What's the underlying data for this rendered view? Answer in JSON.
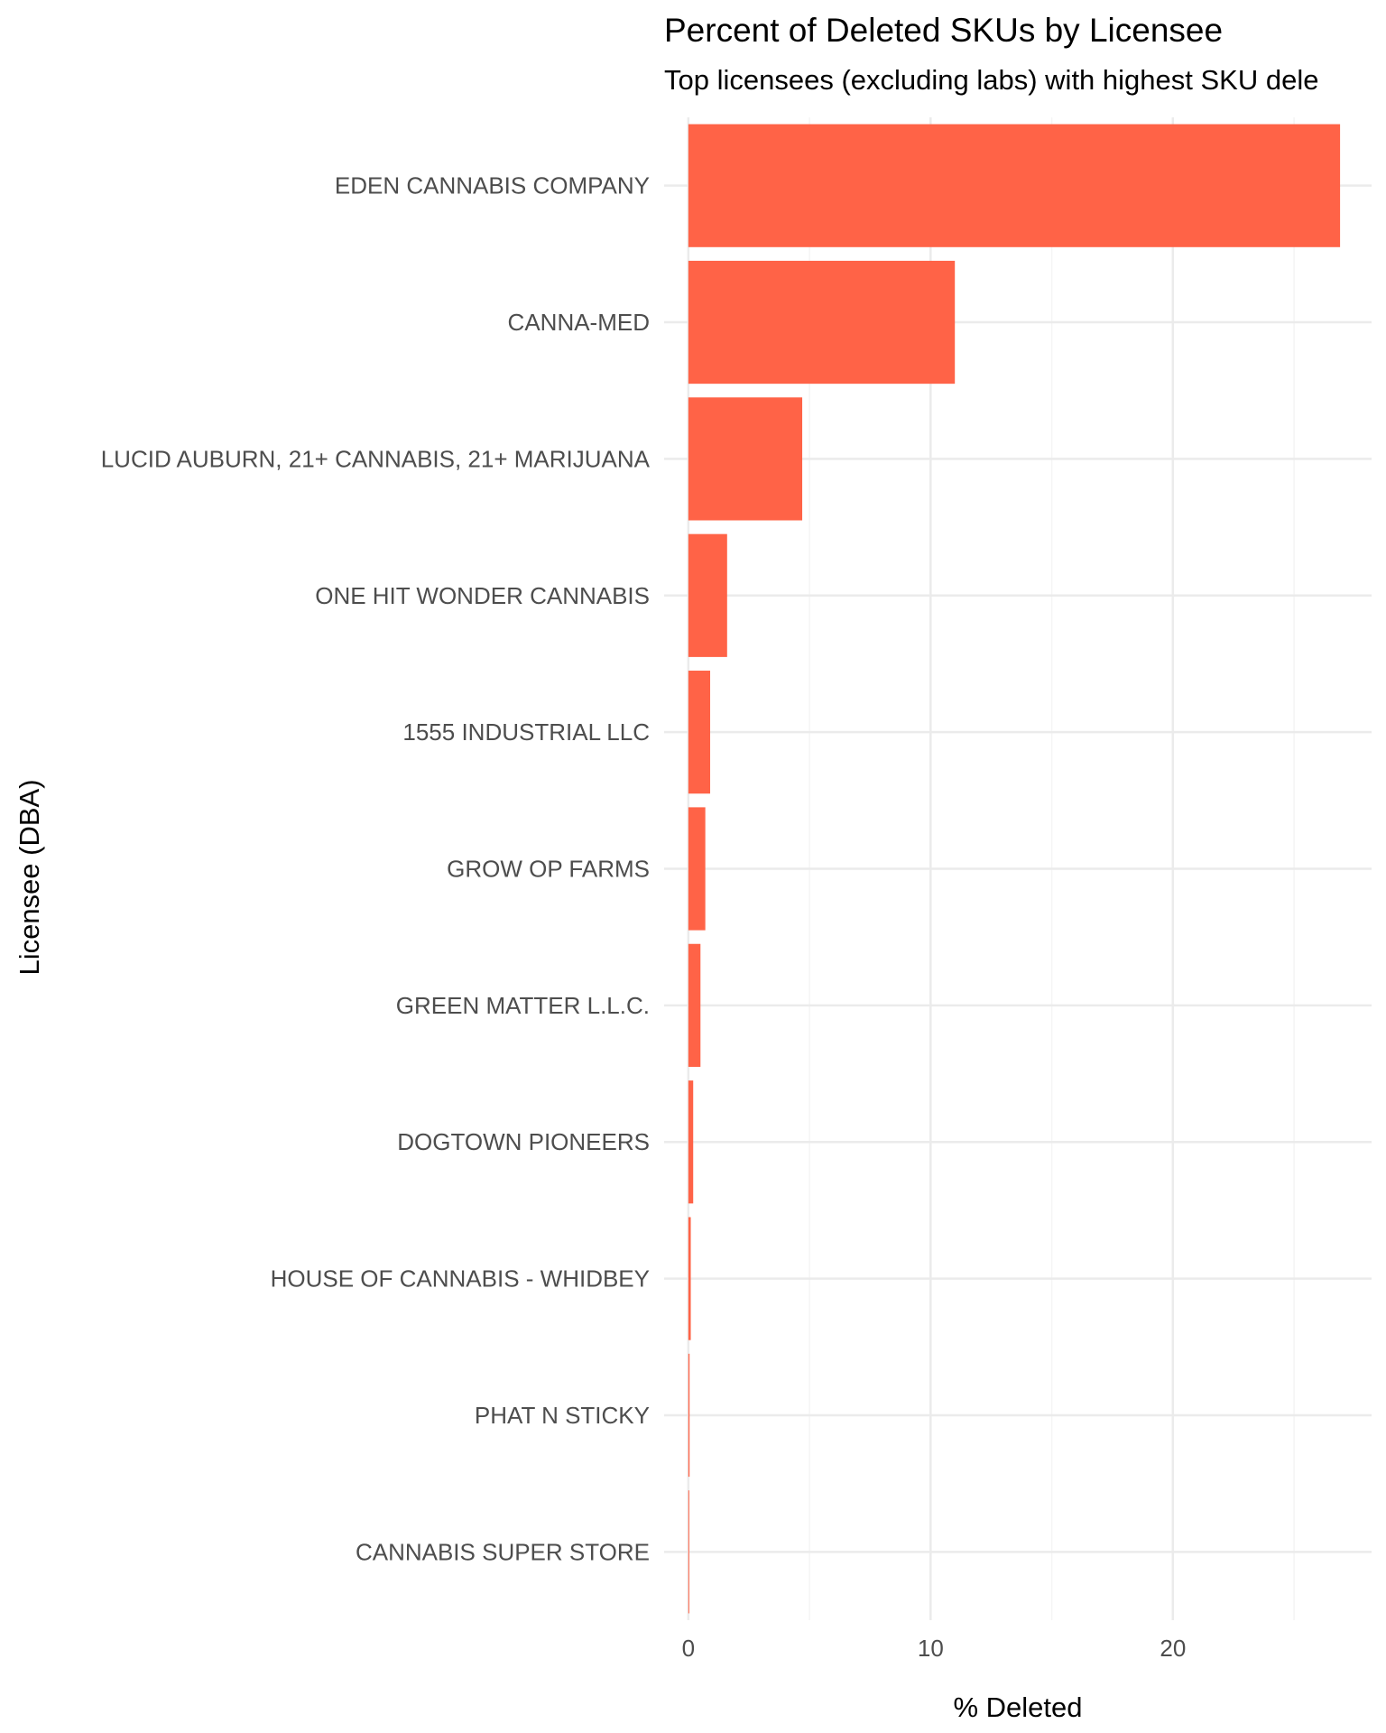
{
  "chart_data": {
    "type": "bar",
    "orientation": "horizontal",
    "title": "Percent of Deleted SKUs by Licensee",
    "subtitle": "Top licensees (excluding labs) with highest SKU dele",
    "xlabel": "% Deleted",
    "ylabel": "Licensee (DBA)",
    "categories": [
      "EDEN CANNABIS COMPANY",
      "CANNA-MED",
      "LUCID AUBURN, 21+ CANNABIS, 21+ MARIJUANA",
      "ONE HIT WONDER CANNABIS",
      "1555 INDUSTRIAL LLC",
      "GROW OP FARMS",
      "GREEN MATTER L.L.C.",
      "DOGTOWN PIONEERS",
      "HOUSE OF CANNABIS - WHIDBEY",
      "PHAT N STICKY",
      "CANNABIS SUPER STORE"
    ],
    "values": [
      26.9,
      11.0,
      4.7,
      1.6,
      0.9,
      0.7,
      0.5,
      0.2,
      0.1,
      0.05,
      0.03
    ],
    "xlim": [
      -1.0,
      28.2
    ],
    "xticks": [
      0,
      10,
      20
    ],
    "grid": true,
    "legend": "none",
    "bar_color": "#ff6347",
    "grid_major_color": "#ebebeb",
    "grid_minor_color": "#f5f5f5"
  }
}
